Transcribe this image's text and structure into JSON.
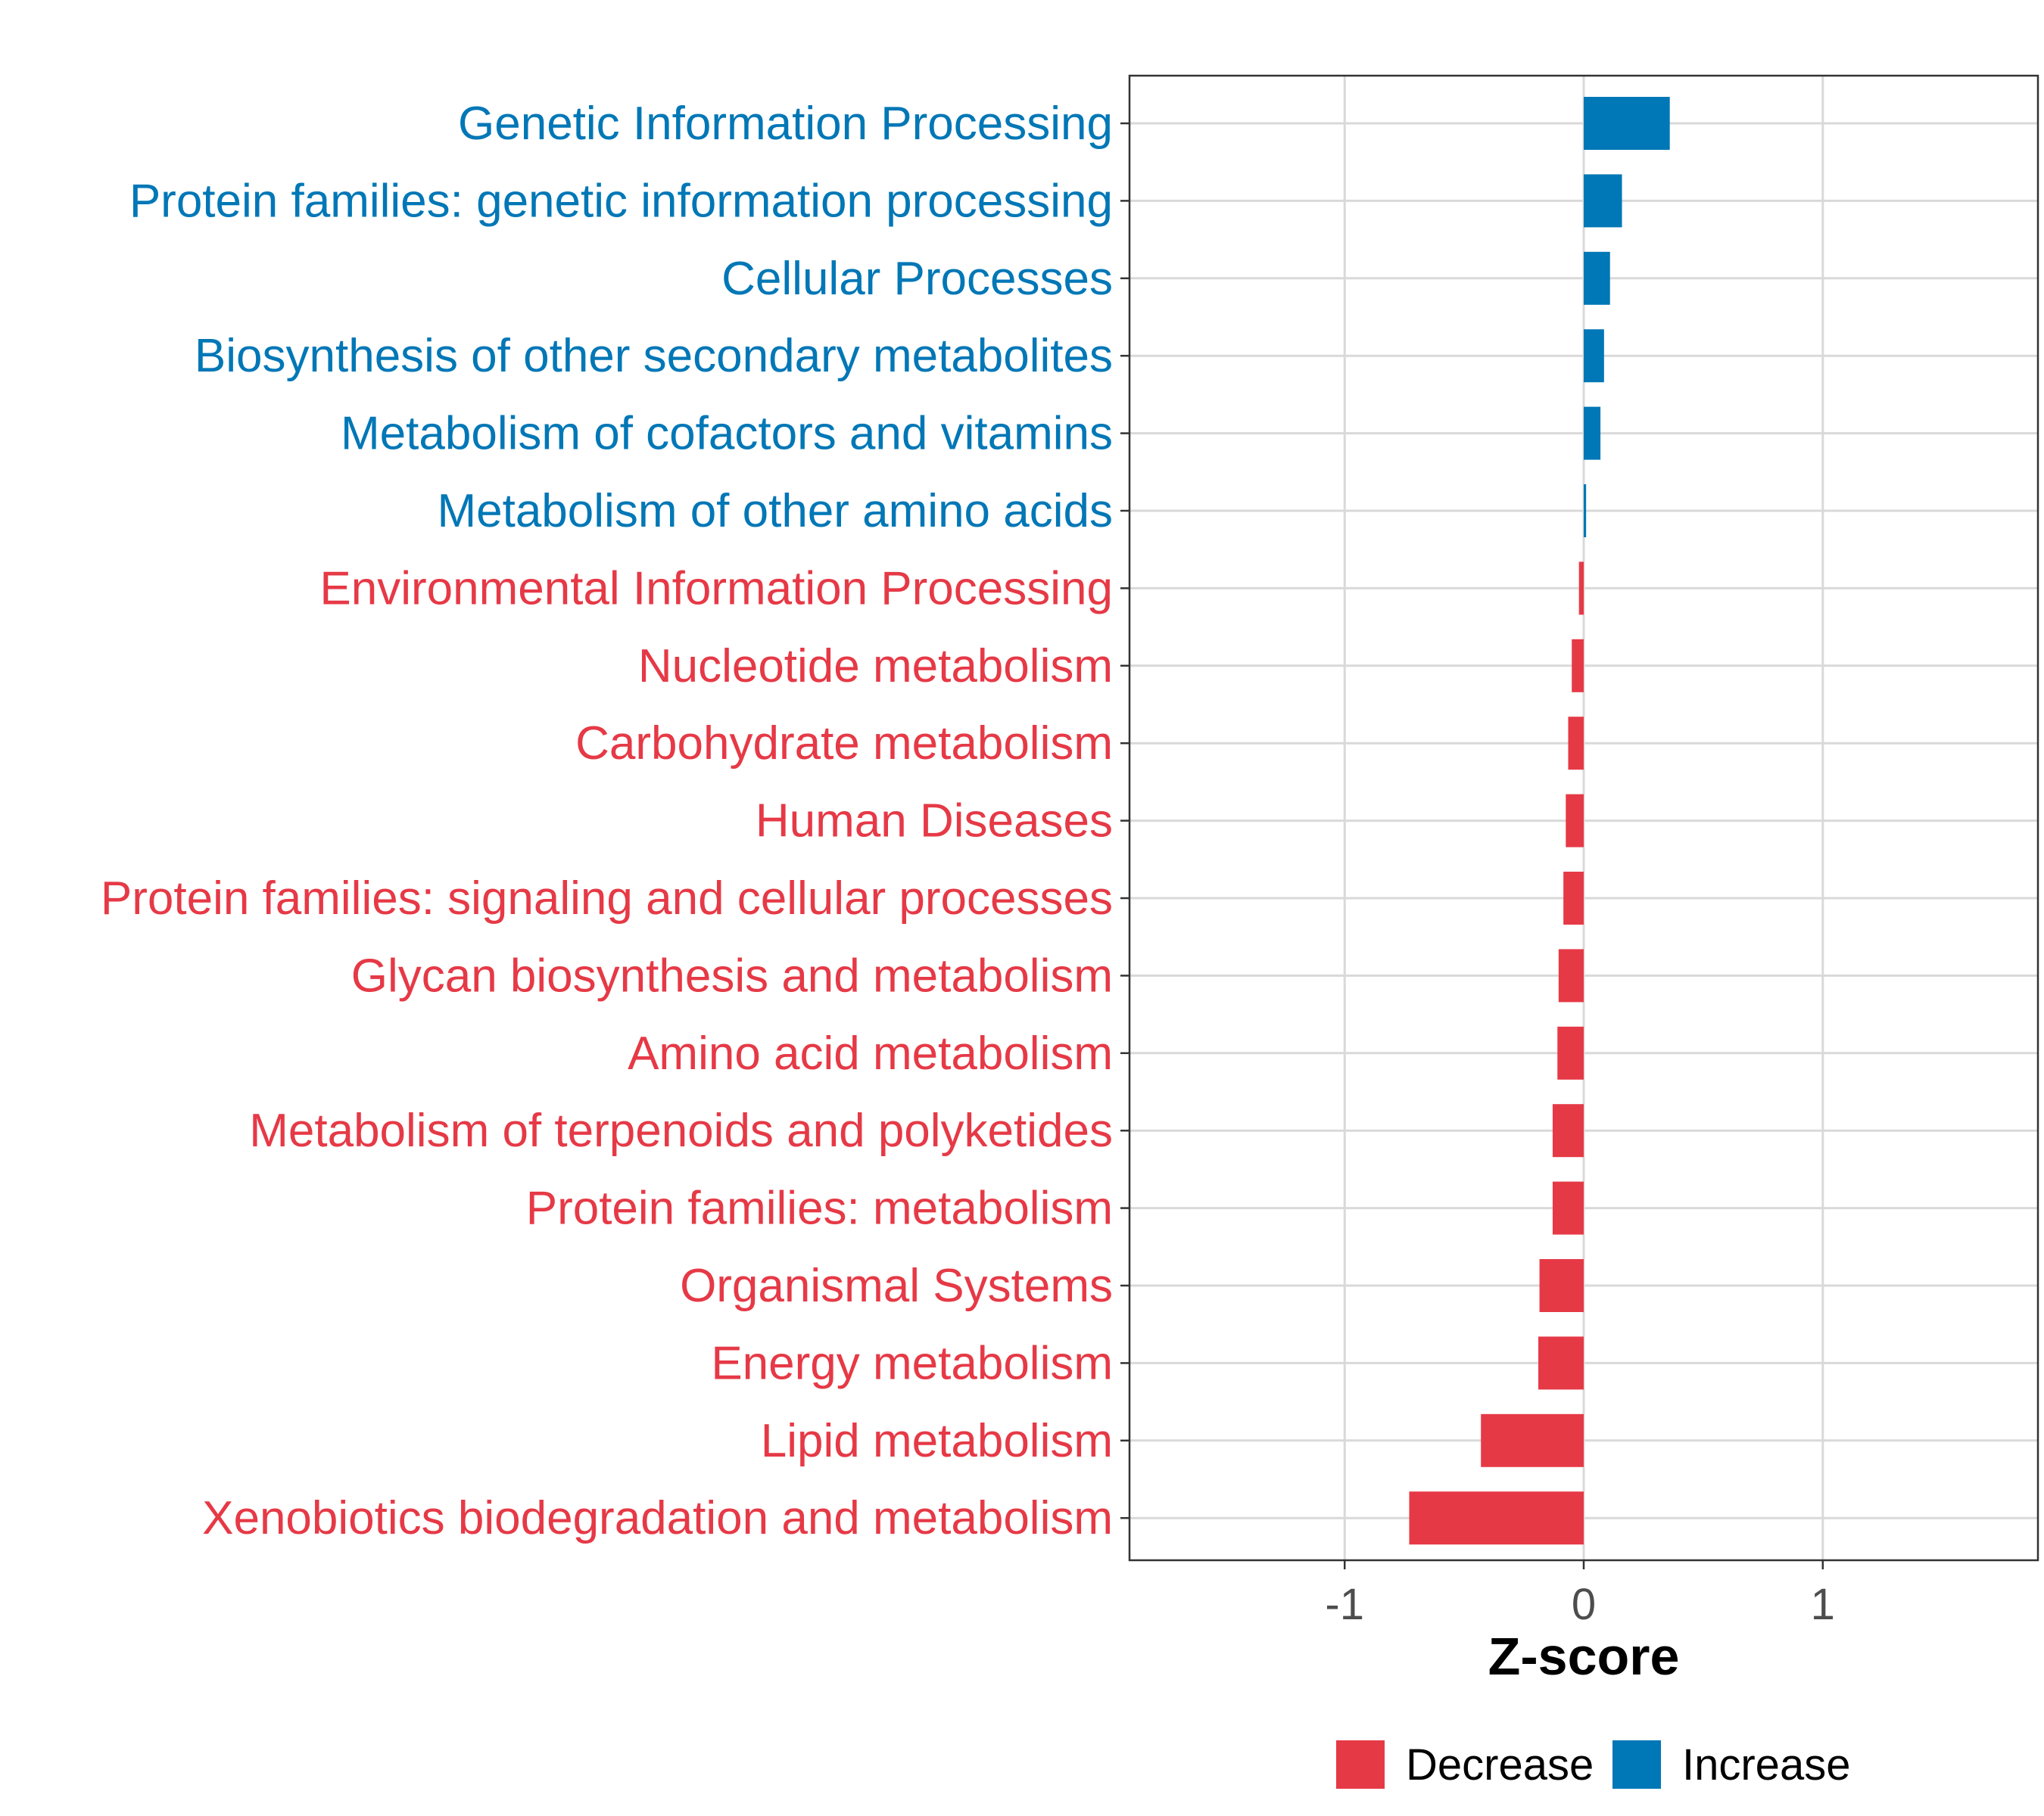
{
  "chart_data": {
    "type": "bar",
    "orientation": "horizontal",
    "categories": [
      "Genetic Information Processing",
      "Protein families: genetic information processing",
      "Cellular Processes",
      "Biosynthesis of other secondary metabolites",
      "Metabolism of cofactors and vitamins",
      "Metabolism of other amino acids",
      "Environmental Information Processing",
      "Nucleotide metabolism",
      "Carbohydrate metabolism",
      "Human Diseases",
      "Protein families: signaling and cellular processes",
      "Glycan biosynthesis and metabolism",
      "Amino acid metabolism",
      "Metabolism of terpenoids and polyketides",
      "Protein families: metabolism",
      "Organismal Systems",
      "Energy metabolism",
      "Lipid metabolism",
      "Xenobiotics biodegradation and metabolism"
    ],
    "values": [
      0.36,
      0.16,
      0.11,
      0.085,
      0.07,
      0.01,
      -0.02,
      -0.05,
      -0.065,
      -0.075,
      -0.085,
      -0.105,
      -0.11,
      -0.13,
      -0.13,
      -0.185,
      -0.19,
      -0.43,
      -0.73
    ],
    "groups": [
      "Increase",
      "Increase",
      "Increase",
      "Increase",
      "Increase",
      "Increase",
      "Decrease",
      "Decrease",
      "Decrease",
      "Decrease",
      "Decrease",
      "Decrease",
      "Decrease",
      "Decrease",
      "Decrease",
      "Decrease",
      "Decrease",
      "Decrease",
      "Decrease"
    ],
    "xlabel": "Z-score",
    "ylabel": "",
    "xlim": [
      -1.9,
      1.9
    ],
    "xticks": [
      -1,
      0,
      1
    ],
    "xtick_labels": [
      "-1",
      "0",
      "1"
    ],
    "grid": true,
    "legend": {
      "placement": "bottom",
      "entries": [
        {
          "name": "Decrease",
          "color": "#e63946"
        },
        {
          "name": "Increase",
          "color": "#0077b6"
        }
      ]
    },
    "colors": {
      "Decrease": "#e63946",
      "Increase": "#0077b6"
    }
  }
}
